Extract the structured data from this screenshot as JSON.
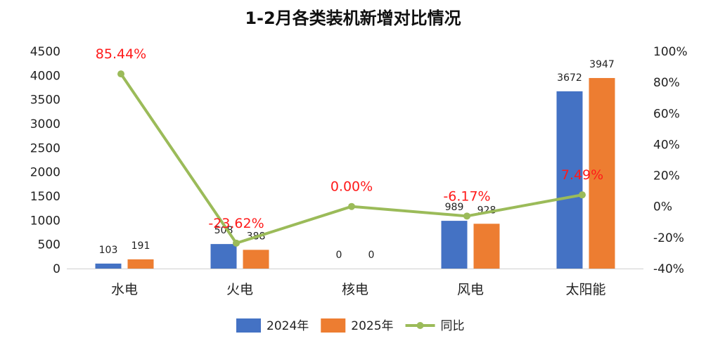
{
  "chart_data": {
    "type": "bar",
    "title": "1-2月各类装机新增对比情况",
    "categories": [
      "水电",
      "火电",
      "核电",
      "风电",
      "太阳能"
    ],
    "series": [
      {
        "name": "2024年",
        "type": "bar",
        "axis": "left",
        "color": "#4472c4",
        "values": [
          103,
          508,
          0,
          989,
          3672
        ]
      },
      {
        "name": "2025年",
        "type": "bar",
        "axis": "left",
        "color": "#ed7d31",
        "values": [
          191,
          388,
          0,
          928,
          3947
        ]
      },
      {
        "name": "同比",
        "type": "line",
        "axis": "right",
        "color": "#9bbb59",
        "values": [
          85.44,
          -23.62,
          0.0,
          -6.17,
          7.49
        ]
      }
    ],
    "yoy_labels": [
      "85.44%",
      "-23.62%",
      "0.00%",
      "-6.17%",
      "7.49%"
    ],
    "y_left": {
      "min": 0,
      "max": 4500,
      "step": 500,
      "ticks": [
        "0",
        "500",
        "1000",
        "1500",
        "2000",
        "2500",
        "3000",
        "3500",
        "4000",
        "4500"
      ]
    },
    "y_right": {
      "min": -40,
      "max": 100,
      "step": 20,
      "ticks": [
        "-40%",
        "-20%",
        "0%",
        "20%",
        "40%",
        "60%",
        "80%",
        "100%"
      ]
    },
    "legend_position": "bottom",
    "grid": false
  }
}
